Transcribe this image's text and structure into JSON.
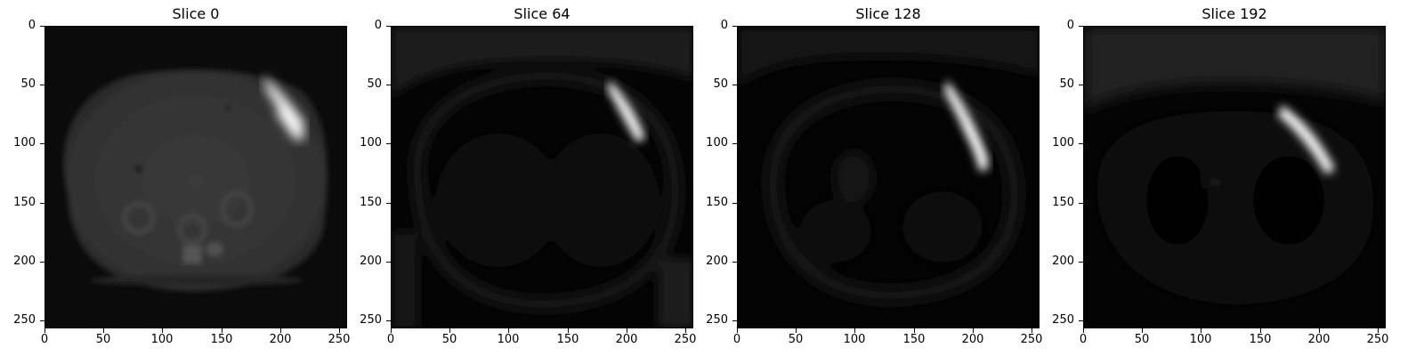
{
  "figure": {
    "panels": [
      {
        "title": "Slice 0"
      },
      {
        "title": "Slice 64"
      },
      {
        "title": "Slice 128"
      },
      {
        "title": "Slice 192"
      }
    ],
    "y_ticks": [
      "0",
      "50",
      "100",
      "150",
      "200",
      "250"
    ],
    "x_ticks": [
      "0",
      "50",
      "100",
      "150",
      "200",
      "250"
    ],
    "colormap": "gray"
  }
}
